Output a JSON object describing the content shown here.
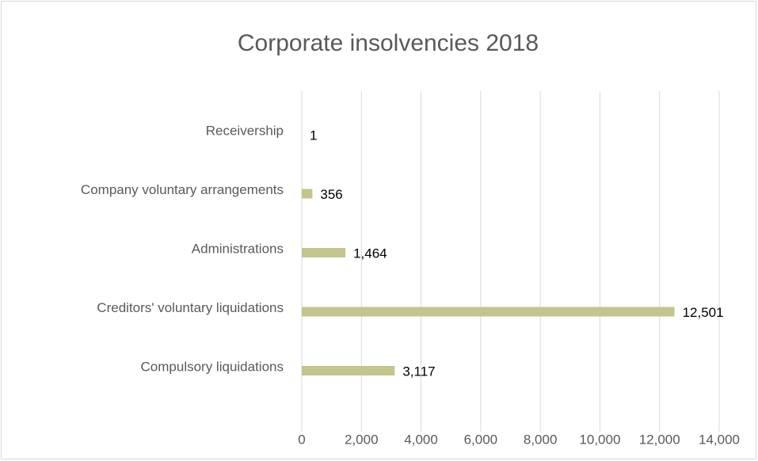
{
  "chart_data": {
    "type": "bar",
    "orientation": "horizontal",
    "title": "Corporate insolvencies 2018",
    "categories": [
      "Receivership",
      "Company voluntary arrangements",
      "Administrations",
      "Creditors' voluntary liquidations",
      "Compulsory liquidations"
    ],
    "values": [
      1,
      356,
      1464,
      12501,
      3117
    ],
    "value_labels": [
      "1",
      "356",
      "1,464",
      "12,501",
      "3,117"
    ],
    "color": "#c4c48e",
    "xlim": [
      0,
      14000
    ],
    "xticks": [
      0,
      {
        "value": 2000,
        "label": "2,000"
      },
      {
        "value": 4000,
        "label": "4,000"
      },
      {
        "value": 6000,
        "label": "6,000"
      },
      {
        "value": 8000,
        "label": "8,000"
      },
      {
        "value": 10000,
        "label": "10,000"
      },
      {
        "value": 12000,
        "label": "12,000"
      },
      {
        "value": 14000,
        "label": "14,000"
      }
    ],
    "grid": true
  }
}
